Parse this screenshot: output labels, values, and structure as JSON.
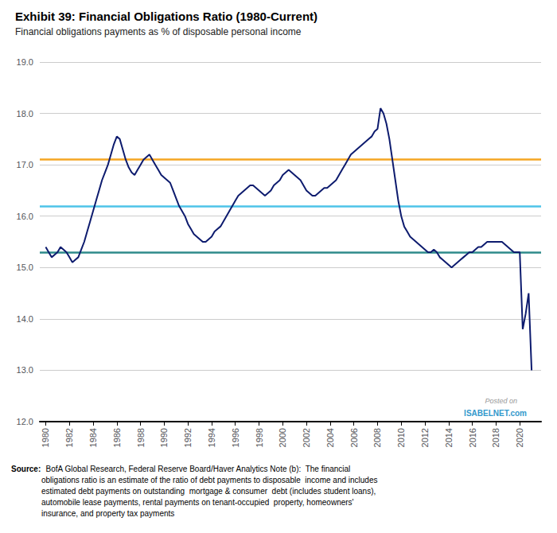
{
  "chart_data": {
    "type": "line",
    "title": "Exhibit 39: Financial Obligations Ratio (1980-Current)",
    "subtitle": "Financial obligations payments as % of disposable personal income",
    "annotations": [
      "Posted on",
      "ISABELNET.com"
    ],
    "source": {
      "label": "Source:",
      "text": "  BofA Global Research, Federal Reserve Board/Haver Analytics Note (b):  The financial\nobligations ratio is an estimate of the ratio of debt payments to disposable  income and includes\nestimated debt payments on outstanding  mortgage & consumer  debt (includes student loans),\nautomobile lease payments, rental payments on tenant-occupied  property, homeowners'\ninsurance, and property tax payments"
    },
    "xlim": [
      1979.5,
      2021.8
    ],
    "xticks": [
      1980,
      1982,
      1984,
      1986,
      1988,
      1990,
      1992,
      1994,
      1996,
      1998,
      2000,
      2002,
      2004,
      2006,
      2008,
      2010,
      2012,
      2014,
      2016,
      2018,
      2020
    ],
    "ylim": [
      12.0,
      19.0
    ],
    "yticks": [
      {
        "value": 12.0,
        "label": "12.0"
      },
      {
        "value": 13.0,
        "label": "13.0"
      },
      {
        "value": 14.0,
        "label": "14.0"
      },
      {
        "value": 15.0,
        "label": "15.0"
      },
      {
        "value": 16.0,
        "label": "16.0"
      },
      {
        "value": 17.0,
        "label": "17.0"
      },
      {
        "value": 18.0,
        "label": "18.0"
      },
      {
        "value": 19.0,
        "label": "19.0"
      }
    ],
    "grid": true,
    "color": "#0D1B6E",
    "reference_lines": [
      {
        "value": 17.1,
        "color": "#F5A623"
      },
      {
        "value": 16.2,
        "color": "#4DC3E8"
      },
      {
        "value": 15.3,
        "color": "#2E8B8B"
      }
    ],
    "x": [
      1980.0,
      1980.25,
      1980.5,
      1980.75,
      1981.0,
      1981.25,
      1981.5,
      1981.75,
      1982.0,
      1982.25,
      1982.5,
      1982.75,
      1983.0,
      1983.25,
      1983.5,
      1983.75,
      1984.0,
      1984.25,
      1984.5,
      1984.75,
      1985.0,
      1985.25,
      1985.5,
      1985.75,
      1986.0,
      1986.25,
      1986.5,
      1986.75,
      1987.0,
      1987.25,
      1987.5,
      1987.75,
      1988.0,
      1988.25,
      1988.5,
      1988.75,
      1989.0,
      1989.25,
      1989.5,
      1989.75,
      1990.0,
      1990.25,
      1990.5,
      1990.75,
      1991.0,
      1991.25,
      1991.5,
      1991.75,
      1992.0,
      1992.25,
      1992.5,
      1992.75,
      1993.0,
      1993.25,
      1993.5,
      1993.75,
      1994.0,
      1994.25,
      1994.5,
      1994.75,
      1995.0,
      1995.25,
      1995.5,
      1995.75,
      1996.0,
      1996.25,
      1996.5,
      1996.75,
      1997.0,
      1997.25,
      1997.5,
      1997.75,
      1998.0,
      1998.25,
      1998.5,
      1998.75,
      1999.0,
      1999.25,
      1999.5,
      1999.75,
      2000.0,
      2000.25,
      2000.5,
      2000.75,
      2001.0,
      2001.25,
      2001.5,
      2001.75,
      2002.0,
      2002.25,
      2002.5,
      2002.75,
      2003.0,
      2003.25,
      2003.5,
      2003.75,
      2004.0,
      2004.25,
      2004.5,
      2004.75,
      2005.0,
      2005.25,
      2005.5,
      2005.75,
      2006.0,
      2006.25,
      2006.5,
      2006.75,
      2007.0,
      2007.25,
      2007.5,
      2007.75,
      2008.0,
      2008.25,
      2008.5,
      2008.75,
      2009.0,
      2009.25,
      2009.5,
      2009.75,
      2010.0,
      2010.25,
      2010.5,
      2010.75,
      2011.0,
      2011.25,
      2011.5,
      2011.75,
      2012.0,
      2012.25,
      2012.5,
      2012.75,
      2013.0,
      2013.25,
      2013.5,
      2013.75,
      2014.0,
      2014.25,
      2014.5,
      2014.75,
      2015.0,
      2015.25,
      2015.5,
      2015.75,
      2016.0,
      2016.25,
      2016.5,
      2016.75,
      2017.0,
      2017.25,
      2017.5,
      2017.75,
      2018.0,
      2018.25,
      2018.5,
      2018.75,
      2019.0,
      2019.25,
      2019.5,
      2019.75,
      2020.0,
      2020.25,
      2020.5,
      2020.75,
      2021.0
    ],
    "values": [
      15.4,
      15.3,
      15.2,
      15.25,
      15.3,
      15.4,
      15.35,
      15.3,
      15.2,
      15.1,
      15.15,
      15.2,
      15.35,
      15.5,
      15.7,
      15.9,
      16.1,
      16.3,
      16.5,
      16.7,
      16.85,
      17.0,
      17.2,
      17.4,
      17.55,
      17.5,
      17.3,
      17.1,
      16.95,
      16.85,
      16.8,
      16.9,
      17.0,
      17.1,
      17.15,
      17.2,
      17.1,
      17.0,
      16.9,
      16.8,
      16.75,
      16.7,
      16.65,
      16.5,
      16.35,
      16.2,
      16.1,
      16.0,
      15.85,
      15.75,
      15.65,
      15.6,
      15.55,
      15.5,
      15.5,
      15.55,
      15.6,
      15.7,
      15.75,
      15.8,
      15.9,
      16.0,
      16.1,
      16.2,
      16.3,
      16.4,
      16.45,
      16.5,
      16.55,
      16.6,
      16.6,
      16.55,
      16.5,
      16.45,
      16.4,
      16.45,
      16.5,
      16.6,
      16.65,
      16.7,
      16.8,
      16.85,
      16.9,
      16.85,
      16.8,
      16.75,
      16.7,
      16.6,
      16.5,
      16.45,
      16.4,
      16.4,
      16.45,
      16.5,
      16.55,
      16.55,
      16.6,
      16.65,
      16.7,
      16.8,
      16.9,
      17.0,
      17.1,
      17.2,
      17.25,
      17.3,
      17.35,
      17.4,
      17.45,
      17.5,
      17.55,
      17.65,
      17.7,
      18.1,
      18.0,
      17.8,
      17.5,
      17.1,
      16.7,
      16.3,
      16.0,
      15.8,
      15.7,
      15.6,
      15.55,
      15.5,
      15.45,
      15.4,
      15.35,
      15.3,
      15.3,
      15.35,
      15.3,
      15.2,
      15.15,
      15.1,
      15.05,
      15.0,
      15.05,
      15.1,
      15.15,
      15.2,
      15.25,
      15.3,
      15.3,
      15.35,
      15.4,
      15.4,
      15.45,
      15.5,
      15.5,
      15.5,
      15.5,
      15.5,
      15.5,
      15.45,
      15.4,
      15.35,
      15.3,
      15.3,
      15.3,
      13.8,
      14.1,
      14.5,
      13.0
    ]
  }
}
